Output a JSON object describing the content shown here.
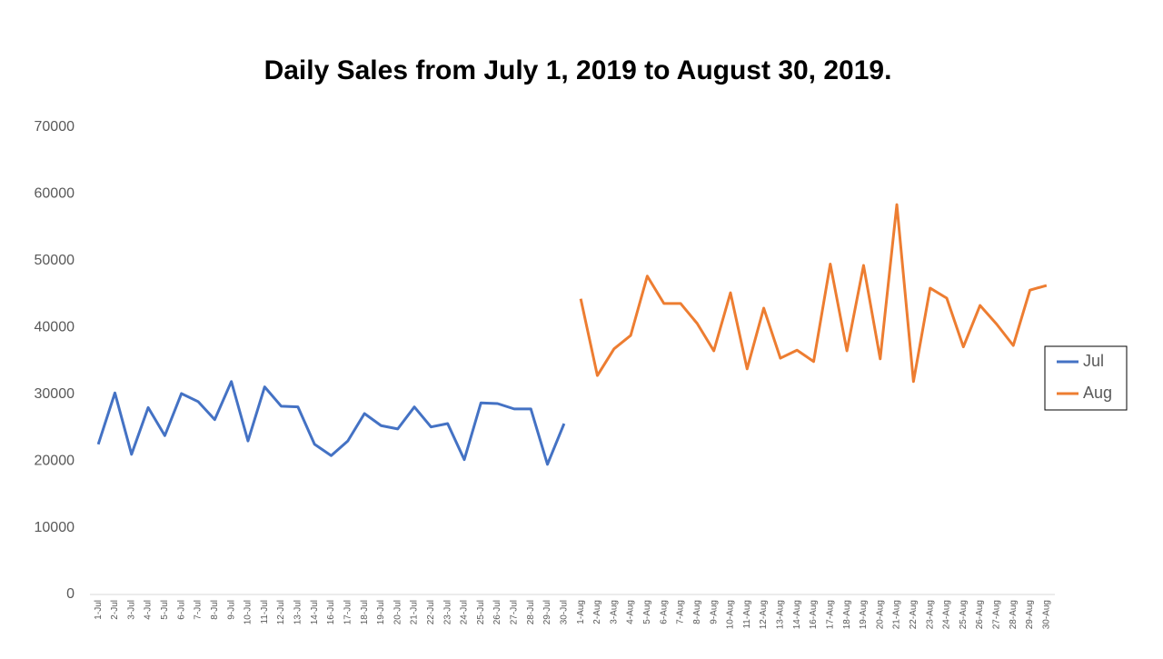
{
  "chart_data": {
    "type": "line",
    "title": "Daily Sales from July 1, 2019 to August 30, 2019.",
    "categories": [
      "1-Jul",
      "2-Jul",
      "3-Jul",
      "4-Jul",
      "5-Jul",
      "6-Jul",
      "7-Jul",
      "8-Jul",
      "9-Jul",
      "10-Jul",
      "11-Jul",
      "12-Jul",
      "13-Jul",
      "14-Jul",
      "16-Jul",
      "17-Jul",
      "18-Jul",
      "19-Jul",
      "20-Jul",
      "21-Jul",
      "22-Jul",
      "23-Jul",
      "24-Jul",
      "25-Jul",
      "26-Jul",
      "27-Jul",
      "28-Jul",
      "29-Jul",
      "30-Jul",
      "1-Aug",
      "2-Aug",
      "3-Aug",
      "4-Aug",
      "5-Aug",
      "6-Aug",
      "7-Aug",
      "8-Aug",
      "9-Aug",
      "10-Aug",
      "11-Aug",
      "12-Aug",
      "13-Aug",
      "14-Aug",
      "16-Aug",
      "17-Aug",
      "18-Aug",
      "19-Aug",
      "20-Aug",
      "21-Aug",
      "22-Aug",
      "23-Aug",
      "24-Aug",
      "25-Aug",
      "26-Aug",
      "27-Aug",
      "28-Aug",
      "29-Aug",
      "30-Aug"
    ],
    "series": [
      {
        "name": "Jul",
        "color": "#4472c4",
        "values": [
          22500,
          30200,
          21000,
          28000,
          23800,
          30100,
          28900,
          26200,
          31900,
          23000,
          31100,
          28200,
          28100,
          22500,
          20800,
          23000,
          27100,
          25300,
          24800,
          28100,
          25100,
          25600,
          20200,
          28700,
          28600,
          27800,
          27800,
          19500,
          25600,
          null,
          null,
          null,
          null,
          null,
          null,
          null,
          null,
          null,
          null,
          null,
          null,
          null,
          null,
          null,
          null,
          null,
          null,
          null,
          null,
          null,
          null,
          null,
          null,
          null,
          null,
          null,
          null,
          null
        ]
      },
      {
        "name": "Aug",
        "color": "#ed7d31",
        "values": [
          null,
          null,
          null,
          null,
          null,
          null,
          null,
          null,
          null,
          null,
          null,
          null,
          null,
          null,
          null,
          null,
          null,
          null,
          null,
          null,
          null,
          null,
          null,
          null,
          null,
          null,
          null,
          null,
          null,
          44300,
          32800,
          36800,
          38800,
          47700,
          43600,
          43600,
          40600,
          36500,
          45200,
          33800,
          42900,
          35400,
          36600,
          34900,
          49500,
          36500,
          49300,
          35300,
          58400,
          31900,
          45900,
          44400,
          37100,
          43300,
          40500,
          37300,
          45600,
          46300
        ]
      }
    ],
    "ylim": [
      0,
      70000
    ],
    "yticks": [
      0,
      10000,
      20000,
      30000,
      40000,
      50000,
      60000,
      70000
    ],
    "legend": "right"
  }
}
